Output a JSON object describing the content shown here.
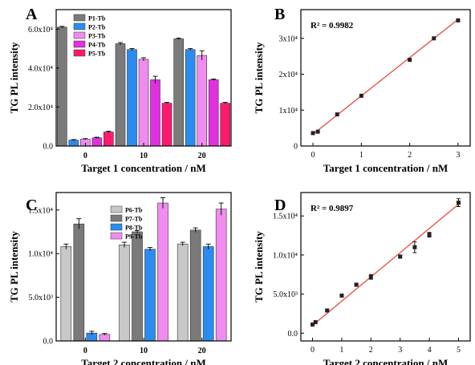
{
  "colors": {
    "P1-Tb": "#7a7a7a",
    "P2-Tb": "#2a8cf0",
    "P3-Tb": "#f08cf0",
    "P4-Tb": "#e030e0",
    "P5-Tb": "#ff1a70",
    "P6-Tb": "#c8c8c8",
    "P7-Tb": "#7a7a7a",
    "P8-Tb": "#2a8cf0",
    "P9-Tb": "#f08cf0",
    "fit_line": "#e84a3a",
    "marker": "#222222"
  },
  "chart_data": [
    {
      "panel": "A",
      "type": "bar",
      "xlabel": "Target 1 concentration / nM",
      "ylabel": "TG PL intensity",
      "categories": [
        "0",
        "10",
        "20"
      ],
      "ylim": [
        0,
        70000
      ],
      "yticks": [
        {
          "value": 0,
          "label": "0.0"
        },
        {
          "value": 20000,
          "label": "2.0x10⁴"
        },
        {
          "value": 40000,
          "label": "4.0x10⁴"
        },
        {
          "value": 60000,
          "label": "6.0x10⁴"
        }
      ],
      "legend_position": "top-left",
      "series": [
        {
          "name": "P1-Tb",
          "values": [
            61000,
            52500,
            55000
          ],
          "errors": [
            400,
            600,
            400
          ]
        },
        {
          "name": "P2-Tb",
          "values": [
            3000,
            49500,
            49500
          ],
          "errors": [
            300,
            500,
            500
          ]
        },
        {
          "name": "P3-Tb",
          "values": [
            3500,
            44500,
            46500
          ],
          "errors": [
            300,
            800,
            2400
          ]
        },
        {
          "name": "P4-Tb",
          "values": [
            4200,
            34000,
            34000
          ],
          "errors": [
            300,
            1800,
            400
          ]
        },
        {
          "name": "P5-Tb",
          "values": [
            7200,
            22000,
            22000
          ],
          "errors": [
            400,
            400,
            400
          ]
        }
      ]
    },
    {
      "panel": "B",
      "type": "scatter",
      "xlabel": "Target 1 concentration / nM",
      "ylabel": "TG PL intensity",
      "annotation": "R² = 0.9982",
      "xlim": [
        -0.25,
        3.25
      ],
      "ylim": [
        0,
        38000
      ],
      "xticks": [
        0,
        1,
        2,
        3
      ],
      "yticks": [
        {
          "value": 0,
          "label": "0"
        },
        {
          "value": 10000,
          "label": "1x10⁴"
        },
        {
          "value": 20000,
          "label": "2x10⁴"
        },
        {
          "value": 30000,
          "label": "3x10⁴"
        }
      ],
      "x": [
        0,
        0.1,
        0.5,
        1,
        2,
        2.5,
        3
      ],
      "y": [
        3600,
        4000,
        8800,
        14000,
        24000,
        30000,
        35000
      ],
      "fit": {
        "x": [
          0,
          3
        ],
        "y": [
          3300,
          35300
        ]
      }
    },
    {
      "panel": "C",
      "type": "bar",
      "xlabel": "Target 2 concentration / nM",
      "ylabel": "TG PL intensity",
      "categories": [
        "0",
        "10",
        "20"
      ],
      "ylim": [
        0,
        17000
      ],
      "yticks": [
        {
          "value": 0,
          "label": "0.0"
        },
        {
          "value": 5000,
          "label": "5.0x10³"
        },
        {
          "value": 10000,
          "label": "1.0x10⁴"
        },
        {
          "value": 15000,
          "label": "1.5x10⁴"
        }
      ],
      "legend_position": "top-center",
      "series": [
        {
          "name": "P6-Tb",
          "values": [
            10800,
            11000,
            11100
          ],
          "errors": [
            300,
            300,
            200
          ]
        },
        {
          "name": "P7-Tb",
          "values": [
            13400,
            12500,
            12700
          ],
          "errors": [
            600,
            150,
            250
          ]
        },
        {
          "name": "P8-Tb",
          "values": [
            900,
            10500,
            10800
          ],
          "errors": [
            200,
            200,
            300
          ]
        },
        {
          "name": "P9-Tb",
          "values": [
            750,
            15800,
            15100
          ],
          "errors": [
            100,
            600,
            700
          ]
        }
      ]
    },
    {
      "panel": "D",
      "type": "scatter",
      "xlabel": "Target 2 concentration / nM",
      "ylabel": "TG PL intensity",
      "annotation": "R² = 0.9897",
      "xlim": [
        -0.4,
        5.4
      ],
      "ylim": [
        -1000,
        18000
      ],
      "xticks": [
        0,
        1,
        2,
        3,
        4,
        5
      ],
      "yticks": [
        {
          "value": 0,
          "label": "0.0"
        },
        {
          "value": 5000,
          "label": "5.0x10³"
        },
        {
          "value": 10000,
          "label": "1.0x10⁴"
        },
        {
          "value": 15000,
          "label": "1.5x10⁴"
        }
      ],
      "x": [
        0,
        0.1,
        0.5,
        1,
        1.5,
        2,
        3,
        3.5,
        4,
        5
      ],
      "y": [
        1100,
        1400,
        2900,
        4800,
        6200,
        7200,
        9800,
        11000,
        12600,
        16700
      ],
      "errors": [
        100,
        100,
        150,
        200,
        200,
        300,
        200,
        700,
        300,
        500
      ],
      "fit": {
        "x": [
          0,
          5
        ],
        "y": [
          1000,
          16500
        ]
      }
    }
  ]
}
